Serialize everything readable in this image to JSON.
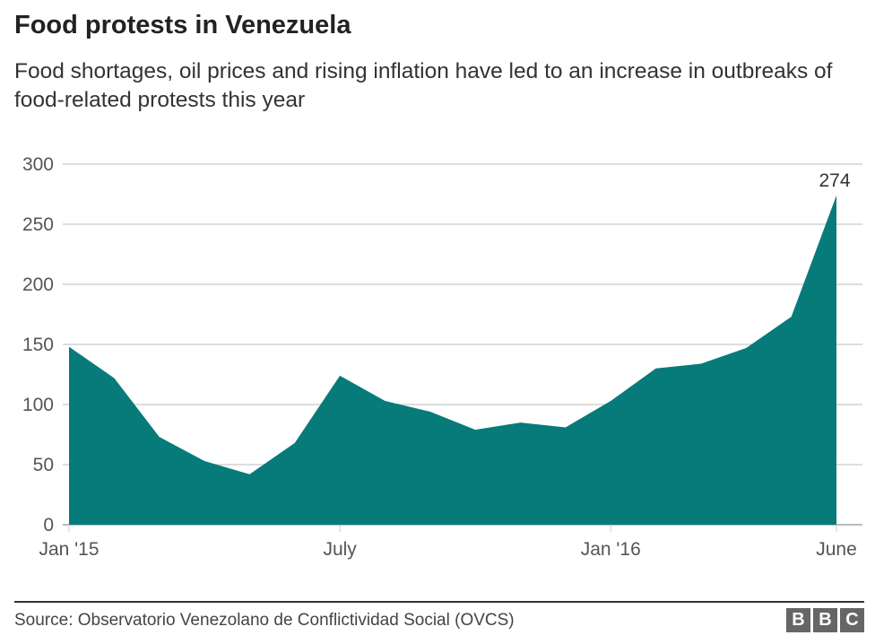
{
  "header": {
    "title": "Food protests in Venezuela",
    "subtitle": "Food shortages, oil prices and rising inflation have led to an increase in outbreaks of food-related protests this year"
  },
  "chart_data": {
    "type": "area",
    "title": "Food protests in Venezuela",
    "xlabel": "",
    "ylabel": "",
    "x": [
      "Jan 2015",
      "Feb 2015",
      "Mar 2015",
      "Apr 2015",
      "May 2015",
      "Jun 2015",
      "Jul 2015",
      "Aug 2015",
      "Sep 2015",
      "Oct 2015",
      "Nov 2015",
      "Dec 2015",
      "Jan 2016",
      "Feb 2016",
      "Mar 2016",
      "Apr 2016",
      "May 2016",
      "Jun 2016"
    ],
    "values": [
      148,
      122,
      73,
      53,
      42,
      68,
      124,
      103,
      94,
      79,
      85,
      81,
      103,
      130,
      134,
      147,
      173,
      274
    ],
    "x_tick_labels": [
      {
        "index": 0,
        "label": "Jan '15"
      },
      {
        "index": 6,
        "label": "July"
      },
      {
        "index": 12,
        "label": "Jan '16"
      },
      {
        "index": 17,
        "label": "June"
      }
    ],
    "y_ticks": [
      0,
      50,
      100,
      150,
      200,
      250,
      300
    ],
    "ylim": [
      0,
      300
    ],
    "grid": true,
    "annotation": {
      "index": 17,
      "label": "274"
    },
    "color": "#077a7a"
  },
  "footer": {
    "source": "Source: Observatorio Venezolano de Conflictividad Social (OVCS)",
    "logo": [
      "B",
      "B",
      "C"
    ]
  }
}
